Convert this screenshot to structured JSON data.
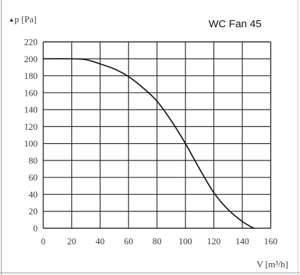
{
  "chart_data": {
    "type": "line",
    "title": "WC Fan 45",
    "ylabel_symbol": "▲",
    "ylabel": "p [Pa]",
    "xlabel": "V [m³/h]",
    "xlim": [
      0,
      160
    ],
    "ylim": [
      0,
      220
    ],
    "x_ticks": [
      0,
      20,
      40,
      60,
      80,
      100,
      120,
      140,
      160
    ],
    "y_ticks": [
      0,
      20,
      40,
      60,
      80,
      100,
      120,
      140,
      160,
      180,
      200,
      220
    ],
    "grid": true,
    "series": [
      {
        "x": [
          0,
          20,
          30,
          40,
          50,
          60,
          70,
          80,
          90,
          100,
          110,
          120,
          130,
          140,
          148
        ],
        "y": [
          200,
          200,
          199,
          194,
          188,
          179,
          166,
          150,
          127,
          100,
          70,
          42,
          22,
          8,
          0
        ]
      }
    ],
    "colors": {
      "line": "#1a1a1a",
      "grid": "#2a2a2a",
      "text": "#3a3a3a"
    }
  }
}
